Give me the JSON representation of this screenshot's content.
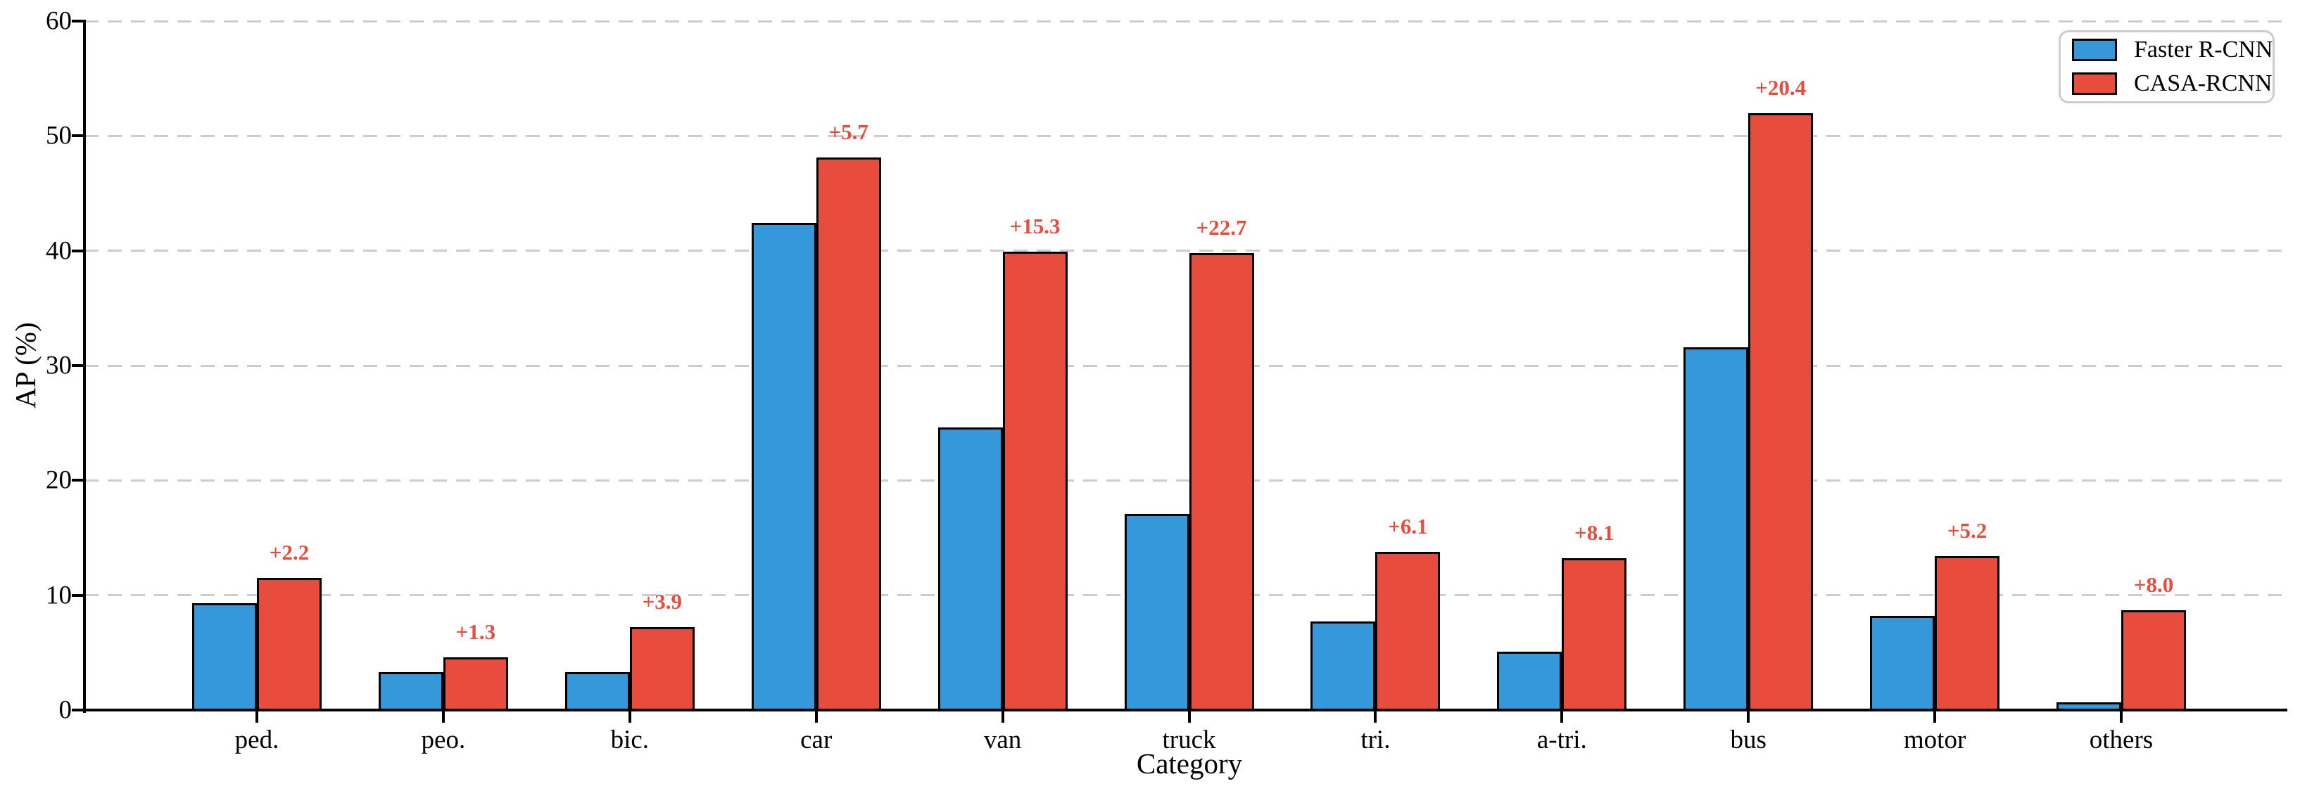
{
  "figure": {
    "background": "#ffffff"
  },
  "chart_data": {
    "type": "bar",
    "title": "",
    "xlabel": "Category",
    "ylabel": "AP (%)",
    "ylim": [
      0,
      60
    ],
    "yticks": [
      0,
      10,
      20,
      30,
      40,
      50,
      60
    ],
    "grid": "horizontal-dashed",
    "grid_color": "#cccccc",
    "legend_position": "upper-right",
    "categories": [
      "ped.",
      "peo.",
      "bic.",
      "car",
      "van",
      "truck",
      "tri.",
      "a-tri.",
      "bus",
      "motor",
      "others"
    ],
    "series": [
      {
        "name": "Faster R-CNN",
        "color": "#3498db",
        "values": [
          9.3,
          3.3,
          3.3,
          42.4,
          24.6,
          17.1,
          7.7,
          5.1,
          31.6,
          8.2,
          0.7
        ]
      },
      {
        "name": "CASA-RCNN",
        "color": "#e74c3c",
        "values": [
          11.5,
          4.6,
          7.2,
          48.1,
          39.9,
          39.8,
          13.8,
          13.2,
          52.0,
          13.4,
          8.7
        ]
      }
    ],
    "annotations": {
      "color": "#e74c3c",
      "labels": [
        "+2.2",
        "+1.3",
        "+3.9",
        "+5.7",
        "+15.3",
        "+22.7",
        "+6.1",
        "+8.1",
        "+20.4",
        "+5.2",
        "+8.0"
      ]
    }
  },
  "colors": {
    "bar_edge": "#000000",
    "axis": "#000000",
    "text": "#000000",
    "legend_border": "#cccccc"
  }
}
